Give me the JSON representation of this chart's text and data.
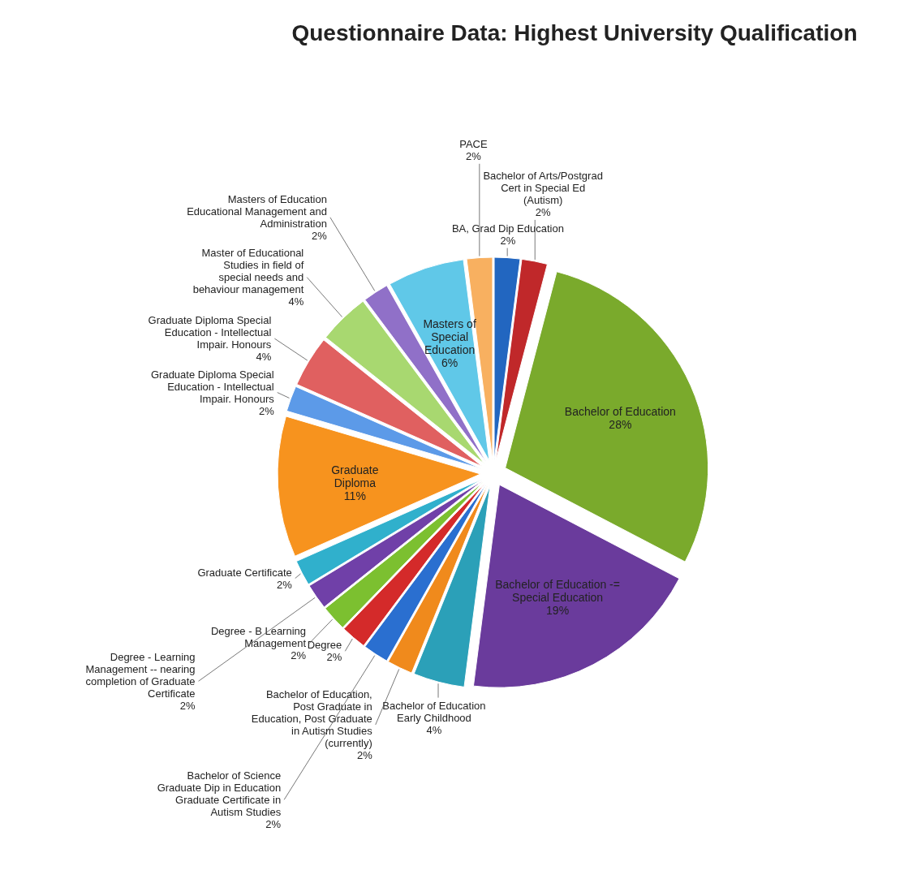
{
  "chart_data": {
    "type": "pie",
    "title": "Questionnaire Data: Highest University Qualification",
    "categories": [
      "BA, Grad Dip Education",
      "Bachelor of Arts/Postgrad Cert in Special Ed (Autism)",
      "Bachelor of Education",
      "Bachelor of Education -= Special Education",
      "Bachelor of Education Early Childhood",
      "Bachelor of Education, Post Graduate in Education, Post Graduate in Autism Studies (currently)",
      "Bachelor of Science Graduate Dip in Education Graduate Certificate in Autism Studies",
      "Degree",
      "Degree - B Learning Management",
      "Degree - Learning Management -- nearing completion of Graduate Certificate",
      "Graduate Certificate",
      "Graduate Diploma",
      "Graduate Diploma Special Education - Intellectual Impair. Honours",
      "Graduate Diploma Special Education - Intellectual Impair. Honours",
      "Master of Educational Studies in field of special needs and behaviour management",
      "Masters of Education Educational Management and Administration",
      "Masters of Special Education",
      "PACE"
    ],
    "values": [
      2,
      2,
      28,
      19,
      4,
      2,
      2,
      2,
      2,
      2,
      2,
      11,
      2,
      4,
      4,
      2,
      6,
      2
    ],
    "value_labels": [
      "2%",
      "2%",
      "28%",
      "19%",
      "4%",
      "2%",
      "2%",
      "2%",
      "2%",
      "2%",
      "2%",
      "11%",
      "2%",
      "4%",
      "4%",
      "2%",
      "6%",
      "2%"
    ],
    "colors": [
      "#2266c0",
      "#c0282a",
      "#7aaa2c",
      "#6a3b9c",
      "#2ba0b8",
      "#f08a1c",
      "#2a6fd0",
      "#d42a2a",
      "#7cc030",
      "#7040a8",
      "#30b0cc",
      "#f7931e",
      "#5c9ae8",
      "#e06060",
      "#a8d870",
      "#9070c8",
      "#60c8e8",
      "#f8b060"
    ]
  }
}
